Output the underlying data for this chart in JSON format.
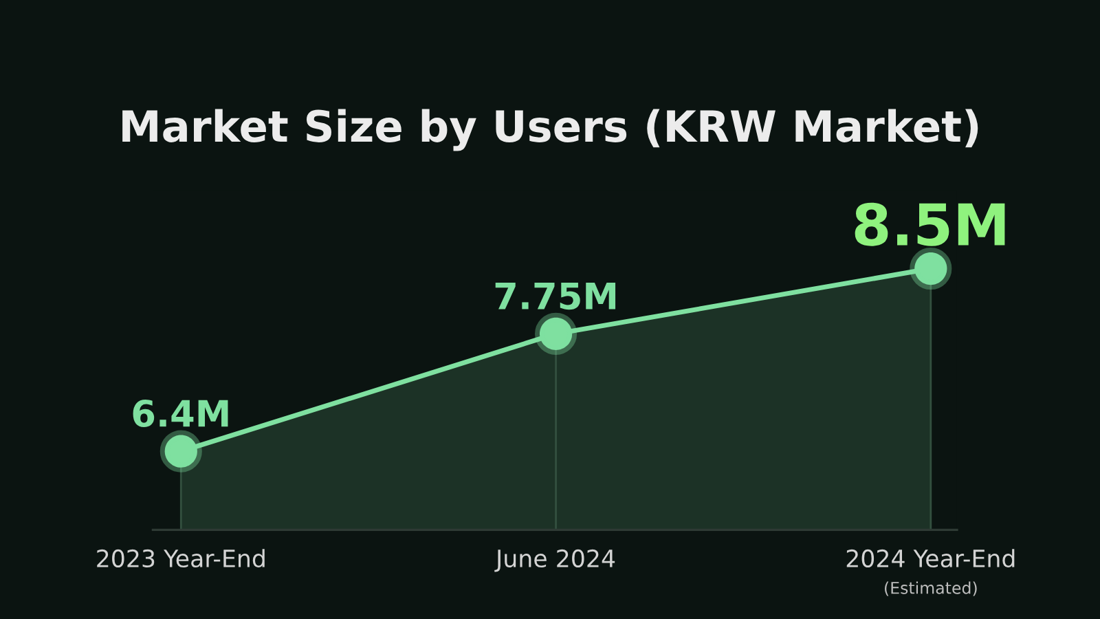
{
  "chart_data": {
    "type": "area",
    "title": "Market Size by Users (KRW Market)",
    "categories": [
      "2023 Year-End",
      "June 2024",
      "2024 Year-End\n(Estimated)"
    ],
    "values": [
      6.4,
      7.75,
      8.5
    ],
    "value_labels": [
      "6.4M",
      "7.75M",
      "8.5M"
    ],
    "color": "#7fe0a0",
    "marker": "circle",
    "tick_labels": "x"
  }
}
